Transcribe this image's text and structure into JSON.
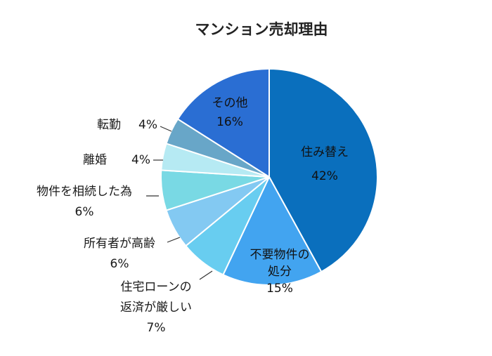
{
  "chart_data": {
    "type": "pie",
    "title": "マンション売却理由",
    "slices": [
      {
        "label": "住み替え",
        "display_lines": [
          "住み替え"
        ],
        "value": 42,
        "value_label": "42%",
        "color": "#0a6fbd"
      },
      {
        "label": "不要物件の処分",
        "display_lines": [
          "不要物件の",
          "処分"
        ],
        "value": 15,
        "value_label": "15%",
        "color": "#42a4f0"
      },
      {
        "label": "住宅ローンの返済が厳しい",
        "display_lines": [
          "住宅ローンの",
          "返済が厳しい"
        ],
        "value": 7,
        "value_label": "7%",
        "color": "#68cdf0"
      },
      {
        "label": "所有者が高齢",
        "display_lines": [
          "所有者が高齢"
        ],
        "value": 6,
        "value_label": "6%",
        "color": "#83c9f2"
      },
      {
        "label": "物件を相続した為",
        "display_lines": [
          "物件を相続した為"
        ],
        "value": 6,
        "value_label": "6%",
        "color": "#79d9e4"
      },
      {
        "label": "離婚",
        "display_lines": [
          "離婚"
        ],
        "value": 4,
        "value_label": "4%",
        "color": "#b6eaf3"
      },
      {
        "label": "転勤",
        "display_lines": [
          "転勤"
        ],
        "value": 4,
        "value_label": "4%",
        "color": "#68a6c8"
      },
      {
        "label": "その他",
        "display_lines": [
          "その他"
        ],
        "value": 16,
        "value_label": "16%",
        "color": "#2a6ed3"
      }
    ]
  }
}
